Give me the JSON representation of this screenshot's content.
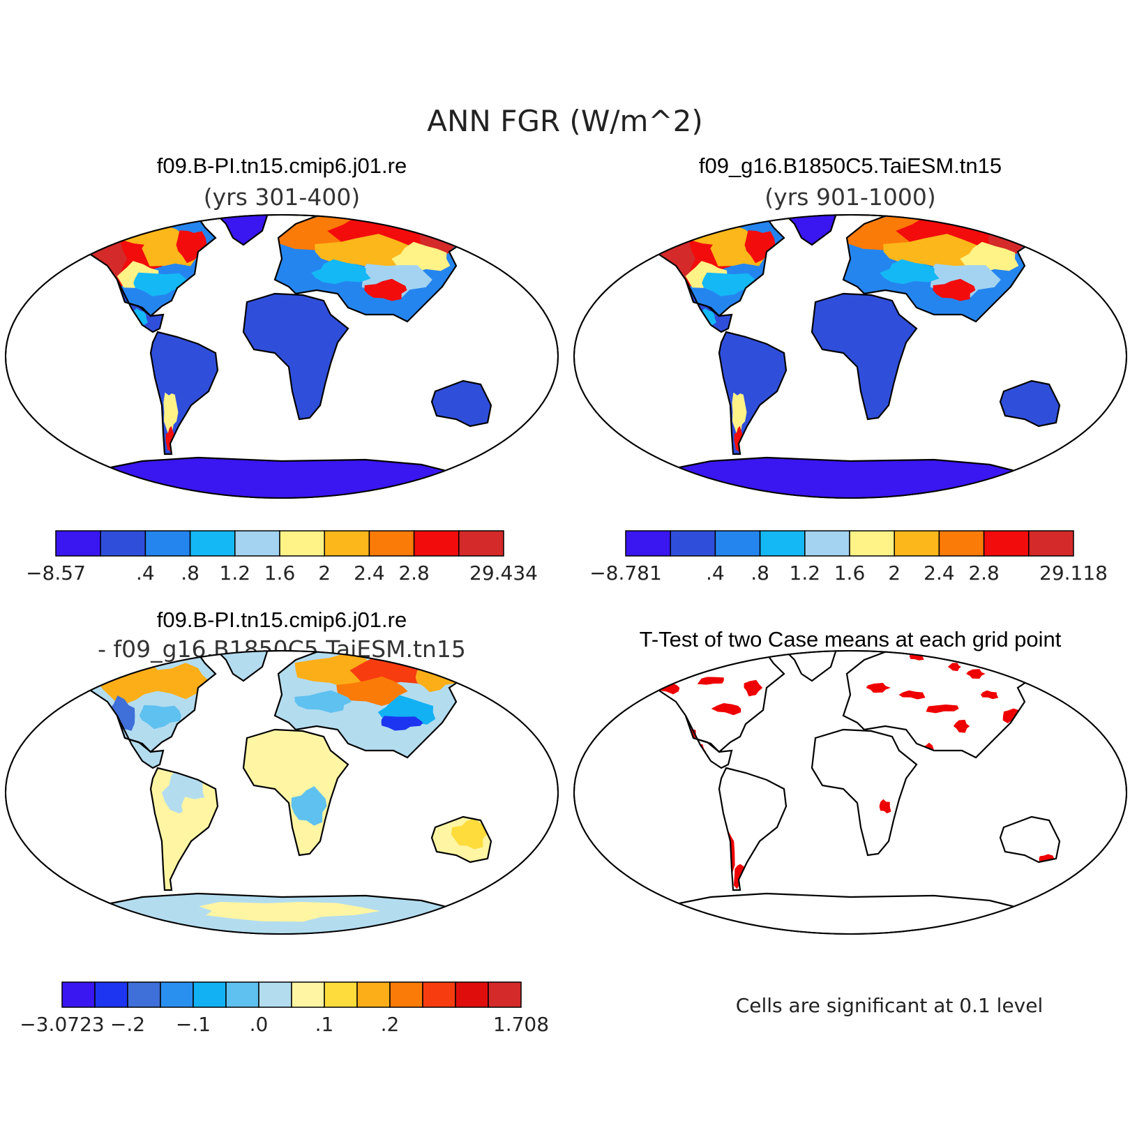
{
  "figure": {
    "title": "ANN FGR (W/m^2)",
    "note": "Cells are significant at 0.1 level"
  },
  "colors": {
    "abs_palette": [
      "#3a16f0",
      "#2f4fdb",
      "#2585ef",
      "#14b8f5",
      "#a3d3f0",
      "#fff286",
      "#fcb71a",
      "#fb7b08",
      "#f20c0c",
      "#d42a2a"
    ],
    "diff_palette": [
      "#3a16f0",
      "#1d34f0",
      "#3f6fd9",
      "#2a90f0",
      "#12b1f4",
      "#5fc1ef",
      "#b3dcef",
      "#fff5a3",
      "#fddc3b",
      "#fcae18",
      "#fb7b08",
      "#f73c10",
      "#e00d0d",
      "#d42a2a"
    ],
    "significant": "#ee0000"
  },
  "chart_data": [
    {
      "type": "heatmap",
      "panel": "top-left",
      "projection": "Robinson",
      "title": "f09.B-PI.tn15.cmip6.j01.re",
      "subtitle": "(yrs 301-400)",
      "colorbar": {
        "levels": [
          "",
          ".4",
          ".8",
          "1.2",
          "1.6",
          "2",
          "2.4",
          "2.8",
          ""
        ],
        "min": "-8.57",
        "max": "29.434"
      }
    },
    {
      "type": "heatmap",
      "panel": "top-right",
      "projection": "Robinson",
      "title": "f09_g16.B1850C5.TaiESM.tn15",
      "subtitle": "(yrs 901-1000)",
      "colorbar": {
        "levels": [
          "",
          ".4",
          ".8",
          "1.2",
          "1.6",
          "2",
          "2.4",
          "2.8",
          ""
        ],
        "min": "-8.781",
        "max": "29.118"
      }
    },
    {
      "type": "heatmap",
      "panel": "bottom-left",
      "projection": "Robinson",
      "title": "f09.B-PI.tn15.cmip6.j01.re",
      "subtitle": "- f09_g16.B1850C5.TaiESM.tn15",
      "colorbar": {
        "levels": [
          "",
          "-.2",
          "",
          "-.1",
          "",
          ".0",
          "",
          ".1",
          "",
          ".2",
          "",
          "",
          ""
        ],
        "min": "-3.0723",
        "max": "1.708"
      }
    },
    {
      "type": "heatmap",
      "panel": "bottom-right",
      "projection": "Robinson",
      "title": "T-Test of two Case means at each grid point"
    }
  ]
}
